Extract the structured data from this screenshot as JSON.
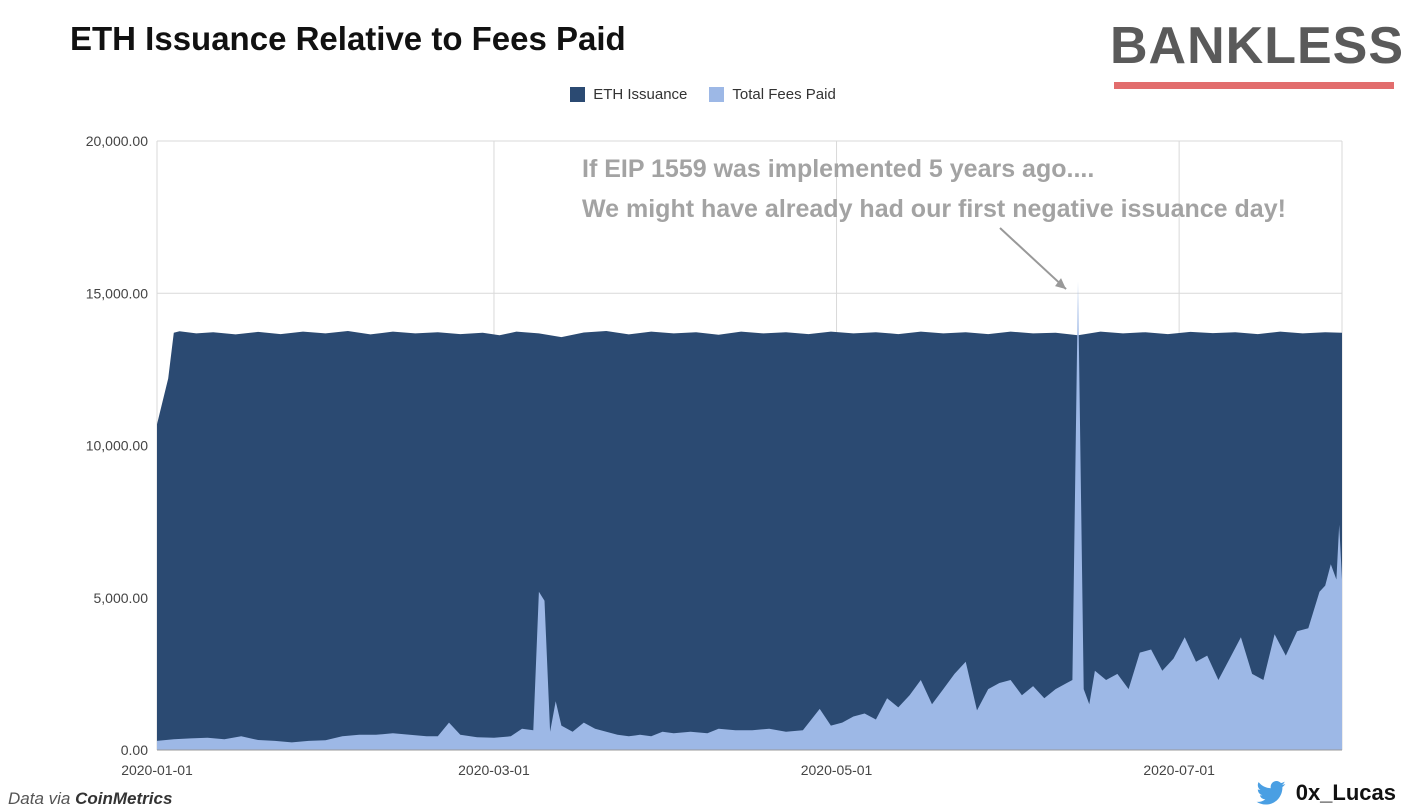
{
  "colors": {
    "issuance": "#2b4a72",
    "fees": "#9db8e6",
    "accent_red": "#e26d6d",
    "twitter_blue": "#4a9fe3"
  },
  "logo": {
    "text": "BANKLESS"
  },
  "footer": {
    "source_prefix": "Data via",
    "source_name": "CoinMetrics",
    "handle": "0x_Lucas",
    "icon": "twitter-icon"
  },
  "chart_data": {
    "type": "area",
    "title": "ETH Issuance Relative to Fees Paid",
    "xlabel": "",
    "ylabel": "",
    "ylim": [
      0,
      20000
    ],
    "grid": true,
    "legend_position": "top-center",
    "y_ticks": [
      "0.00",
      "5,000.00",
      "10,000.00",
      "15,000.00",
      "20,000.00"
    ],
    "x_ticks": [
      {
        "label": "2020-01-01",
        "day": 0
      },
      {
        "label": "2020-03-01",
        "day": 60
      },
      {
        "label": "2020-05-01",
        "day": 121
      },
      {
        "label": "2020-07-01",
        "day": 182
      }
    ],
    "x_range_days": [
      0,
      211
    ],
    "series": [
      {
        "name": "ETH Issuance",
        "points": [
          [
            0,
            10700
          ],
          [
            2,
            12200
          ],
          [
            3,
            13700
          ],
          [
            4,
            13750
          ],
          [
            7,
            13680
          ],
          [
            10,
            13720
          ],
          [
            14,
            13650
          ],
          [
            18,
            13730
          ],
          [
            22,
            13660
          ],
          [
            26,
            13740
          ],
          [
            30,
            13680
          ],
          [
            34,
            13760
          ],
          [
            38,
            13650
          ],
          [
            42,
            13740
          ],
          [
            46,
            13680
          ],
          [
            50,
            13720
          ],
          [
            54,
            13660
          ],
          [
            58,
            13700
          ],
          [
            61,
            13620
          ],
          [
            64,
            13740
          ],
          [
            68,
            13680
          ],
          [
            72,
            13560
          ],
          [
            76,
            13710
          ],
          [
            80,
            13760
          ],
          [
            84,
            13650
          ],
          [
            88,
            13740
          ],
          [
            92,
            13680
          ],
          [
            96,
            13720
          ],
          [
            100,
            13640
          ],
          [
            104,
            13740
          ],
          [
            108,
            13680
          ],
          [
            112,
            13720
          ],
          [
            116,
            13660
          ],
          [
            120,
            13740
          ],
          [
            124,
            13680
          ],
          [
            128,
            13720
          ],
          [
            132,
            13660
          ],
          [
            136,
            13740
          ],
          [
            140,
            13680
          ],
          [
            144,
            13720
          ],
          [
            148,
            13660
          ],
          [
            152,
            13740
          ],
          [
            156,
            13680
          ],
          [
            160,
            13700
          ],
          [
            164,
            13620
          ],
          [
            168,
            13740
          ],
          [
            172,
            13680
          ],
          [
            176,
            13720
          ],
          [
            180,
            13660
          ],
          [
            184,
            13730
          ],
          [
            188,
            13690
          ],
          [
            192,
            13720
          ],
          [
            196,
            13660
          ],
          [
            200,
            13740
          ],
          [
            204,
            13680
          ],
          [
            208,
            13720
          ],
          [
            211,
            13700
          ]
        ]
      },
      {
        "name": "Total Fees Paid",
        "points": [
          [
            0,
            300
          ],
          [
            3,
            350
          ],
          [
            6,
            380
          ],
          [
            9,
            400
          ],
          [
            12,
            350
          ],
          [
            15,
            450
          ],
          [
            18,
            330
          ],
          [
            21,
            300
          ],
          [
            24,
            250
          ],
          [
            27,
            300
          ],
          [
            30,
            320
          ],
          [
            33,
            450
          ],
          [
            36,
            500
          ],
          [
            39,
            500
          ],
          [
            42,
            550
          ],
          [
            45,
            500
          ],
          [
            48,
            450
          ],
          [
            50,
            450
          ],
          [
            52,
            900
          ],
          [
            54,
            500
          ],
          [
            57,
            420
          ],
          [
            60,
            400
          ],
          [
            63,
            450
          ],
          [
            65,
            700
          ],
          [
            67,
            650
          ],
          [
            68,
            5200
          ],
          [
            69,
            4900
          ],
          [
            70,
            600
          ],
          [
            71,
            1600
          ],
          [
            72,
            800
          ],
          [
            74,
            600
          ],
          [
            76,
            900
          ],
          [
            78,
            700
          ],
          [
            80,
            600
          ],
          [
            82,
            500
          ],
          [
            84,
            450
          ],
          [
            86,
            500
          ],
          [
            88,
            450
          ],
          [
            90,
            600
          ],
          [
            92,
            550
          ],
          [
            95,
            600
          ],
          [
            98,
            550
          ],
          [
            100,
            700
          ],
          [
            103,
            650
          ],
          [
            106,
            650
          ],
          [
            109,
            700
          ],
          [
            112,
            600
          ],
          [
            115,
            650
          ],
          [
            118,
            1350
          ],
          [
            120,
            800
          ],
          [
            122,
            900
          ],
          [
            124,
            1100
          ],
          [
            126,
            1200
          ],
          [
            128,
            1000
          ],
          [
            130,
            1700
          ],
          [
            132,
            1400
          ],
          [
            134,
            1800
          ],
          [
            136,
            2300
          ],
          [
            138,
            1500
          ],
          [
            140,
            2000
          ],
          [
            142,
            2500
          ],
          [
            144,
            2900
          ],
          [
            146,
            1300
          ],
          [
            148,
            2000
          ],
          [
            150,
            2200
          ],
          [
            152,
            2300
          ],
          [
            154,
            1800
          ],
          [
            156,
            2100
          ],
          [
            158,
            1700
          ],
          [
            160,
            2000
          ],
          [
            162,
            2200
          ],
          [
            163,
            2300
          ],
          [
            164,
            15400
          ],
          [
            165,
            2000
          ],
          [
            166,
            1500
          ],
          [
            167,
            2600
          ],
          [
            169,
            2300
          ],
          [
            171,
            2500
          ],
          [
            173,
            2000
          ],
          [
            175,
            3200
          ],
          [
            177,
            3300
          ],
          [
            179,
            2600
          ],
          [
            181,
            3000
          ],
          [
            183,
            3700
          ],
          [
            185,
            2900
          ],
          [
            187,
            3100
          ],
          [
            189,
            2300
          ],
          [
            191,
            3000
          ],
          [
            193,
            3700
          ],
          [
            195,
            2500
          ],
          [
            197,
            2300
          ],
          [
            199,
            3800
          ],
          [
            201,
            3100
          ],
          [
            203,
            3900
          ],
          [
            205,
            4000
          ],
          [
            207,
            5200
          ],
          [
            208,
            5400
          ],
          [
            209,
            6100
          ],
          [
            210,
            5600
          ],
          [
            210.5,
            7400
          ],
          [
            211,
            5600
          ]
        ]
      }
    ],
    "annotations": [
      {
        "lines": [
          "If EIP 1559 was implemented 5 years ago....",
          "We might have already had our first negative issuance day!"
        ],
        "points_to_day": 164,
        "points_to_value": 15400
      }
    ]
  }
}
